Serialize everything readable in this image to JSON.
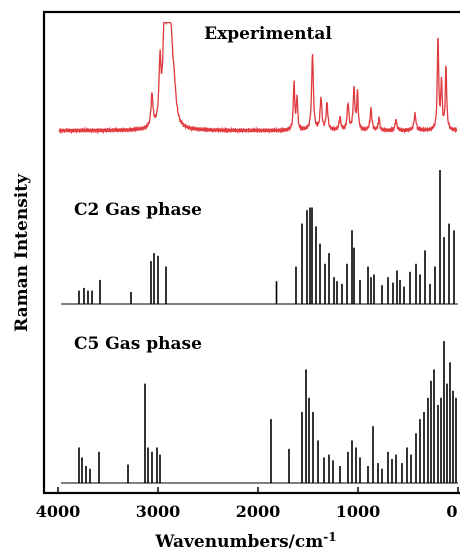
{
  "chart_data": {
    "type": "line",
    "xlabel": "Wavenumbers/cm",
    "xlabel_superscript": "-1",
    "ylabel": "Raman Intensity",
    "xlim": [
      4000,
      0
    ],
    "x_ticks": [
      4000,
      3000,
      2000,
      1000,
      0
    ],
    "x_tick_labels": [
      "4000",
      "3000",
      "2000",
      "1000",
      "0"
    ],
    "series": [
      {
        "name": "Experimental",
        "kind": "continuous",
        "color": "#e0393e",
        "baseline": 0.05,
        "peaks": [
          [
            3060,
            0.3,
            12
          ],
          [
            2980,
            0.55,
            12
          ],
          [
            2935,
            1.0,
            16
          ],
          [
            2900,
            0.8,
            18
          ],
          [
            2870,
            0.6,
            20
          ],
          [
            2840,
            0.3,
            25
          ],
          [
            1640,
            0.45,
            8
          ],
          [
            1610,
            0.3,
            8
          ],
          [
            1455,
            0.72,
            10
          ],
          [
            1370,
            0.3,
            10
          ],
          [
            1310,
            0.25,
            10
          ],
          [
            1180,
            0.12,
            10
          ],
          [
            1100,
            0.25,
            10
          ],
          [
            1040,
            0.38,
            10
          ],
          [
            1005,
            0.35,
            8
          ],
          [
            870,
            0.2,
            10
          ],
          [
            790,
            0.12,
            8
          ],
          [
            620,
            0.1,
            10
          ],
          [
            430,
            0.15,
            12
          ],
          [
            200,
            0.88,
            8
          ],
          [
            165,
            0.45,
            8
          ],
          [
            120,
            0.6,
            8
          ]
        ]
      },
      {
        "name": "C2 Gas phase",
        "kind": "stick",
        "color": "#000000",
        "peaks": [
          [
            3790,
            0.1
          ],
          [
            3740,
            0.12
          ],
          [
            3700,
            0.1
          ],
          [
            3660,
            0.1
          ],
          [
            3580,
            0.18
          ],
          [
            3270,
            0.09
          ],
          [
            3070,
            0.32
          ],
          [
            3040,
            0.38
          ],
          [
            3000,
            0.36
          ],
          [
            2920,
            0.28
          ],
          [
            1815,
            0.17
          ],
          [
            1620,
            0.28
          ],
          [
            1560,
            0.6
          ],
          [
            1510,
            0.7
          ],
          [
            1480,
            0.72
          ],
          [
            1460,
            0.72
          ],
          [
            1420,
            0.58
          ],
          [
            1380,
            0.45
          ],
          [
            1330,
            0.3
          ],
          [
            1290,
            0.38
          ],
          [
            1240,
            0.2
          ],
          [
            1210,
            0.17
          ],
          [
            1160,
            0.15
          ],
          [
            1110,
            0.3
          ],
          [
            1060,
            0.55
          ],
          [
            1040,
            0.42
          ],
          [
            980,
            0.18
          ],
          [
            900,
            0.28
          ],
          [
            870,
            0.2
          ],
          [
            840,
            0.22
          ],
          [
            760,
            0.14
          ],
          [
            700,
            0.2
          ],
          [
            650,
            0.16
          ],
          [
            610,
            0.25
          ],
          [
            580,
            0.18
          ],
          [
            540,
            0.13
          ],
          [
            480,
            0.24
          ],
          [
            420,
            0.3
          ],
          [
            380,
            0.22
          ],
          [
            330,
            0.4
          ],
          [
            280,
            0.15
          ],
          [
            230,
            0.28
          ],
          [
            180,
            1.0
          ],
          [
            140,
            0.5
          ],
          [
            90,
            0.6
          ],
          [
            40,
            0.55
          ]
        ]
      },
      {
        "name": "C5 Gas phase",
        "kind": "stick",
        "color": "#000000",
        "peaks": [
          [
            3790,
            0.25
          ],
          [
            3760,
            0.18
          ],
          [
            3720,
            0.12
          ],
          [
            3680,
            0.1
          ],
          [
            3590,
            0.22
          ],
          [
            3300,
            0.13
          ],
          [
            3130,
            0.7
          ],
          [
            3100,
            0.25
          ],
          [
            3060,
            0.22
          ],
          [
            3010,
            0.25
          ],
          [
            2980,
            0.2
          ],
          [
            1870,
            0.45
          ],
          [
            1690,
            0.24
          ],
          [
            1560,
            0.5
          ],
          [
            1520,
            0.8
          ],
          [
            1490,
            0.6
          ],
          [
            1450,
            0.5
          ],
          [
            1400,
            0.3
          ],
          [
            1340,
            0.18
          ],
          [
            1290,
            0.2
          ],
          [
            1250,
            0.16
          ],
          [
            1180,
            0.12
          ],
          [
            1100,
            0.22
          ],
          [
            1060,
            0.3
          ],
          [
            1020,
            0.25
          ],
          [
            980,
            0.18
          ],
          [
            900,
            0.12
          ],
          [
            850,
            0.4
          ],
          [
            800,
            0.14
          ],
          [
            760,
            0.1
          ],
          [
            700,
            0.22
          ],
          [
            660,
            0.17
          ],
          [
            620,
            0.2
          ],
          [
            560,
            0.14
          ],
          [
            510,
            0.25
          ],
          [
            470,
            0.2
          ],
          [
            420,
            0.35
          ],
          [
            380,
            0.45
          ],
          [
            340,
            0.5
          ],
          [
            300,
            0.6
          ],
          [
            270,
            0.72
          ],
          [
            240,
            0.8
          ],
          [
            200,
            0.55
          ],
          [
            170,
            0.6
          ],
          [
            140,
            1.0
          ],
          [
            110,
            0.7
          ],
          [
            80,
            0.85
          ],
          [
            50,
            0.65
          ],
          [
            20,
            0.6
          ]
        ]
      }
    ],
    "grid": false,
    "legend": "none"
  }
}
